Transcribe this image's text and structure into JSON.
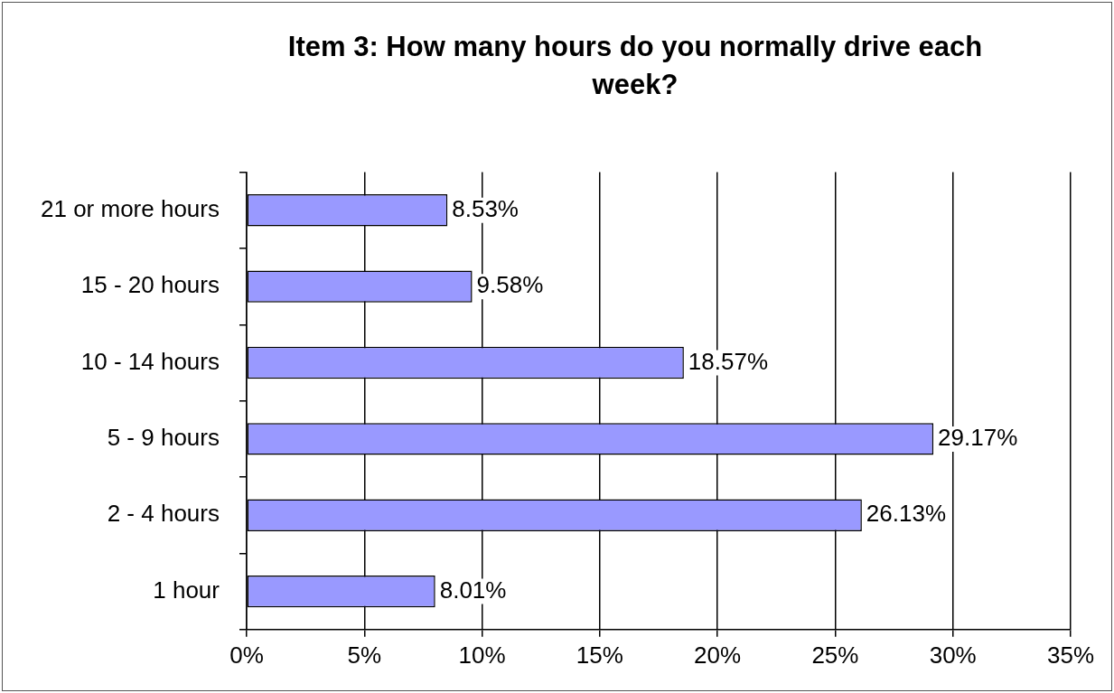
{
  "chart_data": {
    "type": "bar",
    "orientation": "horizontal",
    "title": "Item 3:  How many hours do you normally drive each week?",
    "categories": [
      "21 or more hours",
      "15 - 20 hours",
      "10 - 14 hours",
      "5 - 9 hours",
      "2 - 4 hours",
      "1 hour"
    ],
    "values": [
      8.53,
      9.58,
      18.57,
      29.17,
      26.13,
      8.01
    ],
    "value_labels": [
      "8.53%",
      "9.58%",
      "18.57%",
      "29.17%",
      "26.13%",
      "8.01%"
    ],
    "color": "#9999ff",
    "xlim": [
      0,
      35
    ],
    "xticks": [
      {
        "value": 0,
        "label": "0%"
      },
      {
        "value": 5,
        "label": "5%"
      },
      {
        "value": 10,
        "label": "10%"
      },
      {
        "value": 15,
        "label": "15%"
      },
      {
        "value": 20,
        "label": "20%"
      },
      {
        "value": 25,
        "label": "25%"
      },
      {
        "value": 30,
        "label": "30%"
      },
      {
        "value": 35,
        "label": "35%"
      }
    ],
    "grid": "x",
    "legend": false
  }
}
